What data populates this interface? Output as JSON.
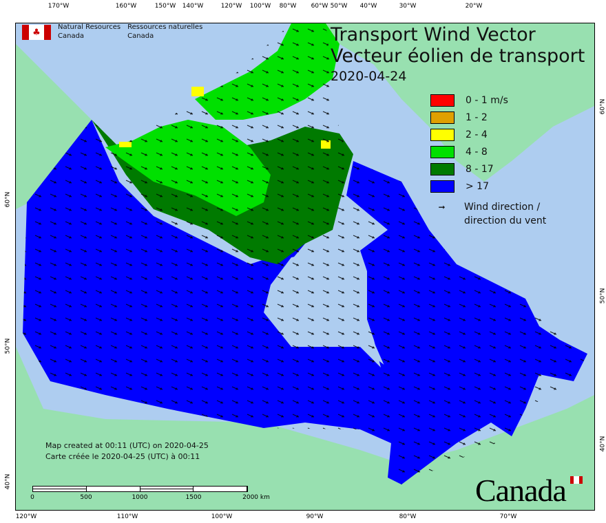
{
  "title": {
    "line1": "Transport Wind Vector",
    "line2": "Vecteur éolien de transport",
    "date": "2020-04-24"
  },
  "agency": {
    "en_line1": "Natural Resources",
    "en_line2": "Canada",
    "fr_line1": "Ressources naturelles",
    "fr_line2": "Canada",
    "flag_color": "#cc0000"
  },
  "legend": {
    "items": [
      {
        "label": "0 - 1 m/s",
        "color": "#ff0000"
      },
      {
        "label": "1 - 2",
        "color": "#e0a000"
      },
      {
        "label": "2 - 4",
        "color": "#ffff00"
      },
      {
        "label": "4 - 8",
        "color": "#00e000"
      },
      {
        "label": "8 - 17",
        "color": "#007a00"
      },
      {
        "label": "> 17",
        "color": "#0000ff"
      }
    ],
    "wind_line1": "Wind direction /",
    "wind_line2": "direction du vent",
    "arrow_icon": "arrow-right-icon"
  },
  "created": {
    "en": "Map created at 00:11 (UTC) on 2020-04-25",
    "fr": "Carte créée le 2020-04-25 (UTC) à 00:11"
  },
  "scale": {
    "labels": [
      "0",
      "500",
      "1000",
      "1500",
      "2000  km"
    ]
  },
  "axes": {
    "top": [
      "170°W",
      "160°W",
      "150°W",
      "140°W",
      "120°W",
      "100°W",
      "80°W",
      "60°W",
      "50°W",
      "40°W",
      "30°W",
      "20°W"
    ],
    "bottom": [
      "120°W",
      "110°W",
      "100°W",
      "90°W",
      "80°W",
      "70°W"
    ],
    "left": [
      "60°N",
      "50°N",
      "40°N"
    ],
    "right": [
      "60°N",
      "50°N",
      "40°N"
    ]
  },
  "colors": {
    "water": "#aecdf0",
    "land": "#98e0b0"
  },
  "wordmark": "Canada"
}
